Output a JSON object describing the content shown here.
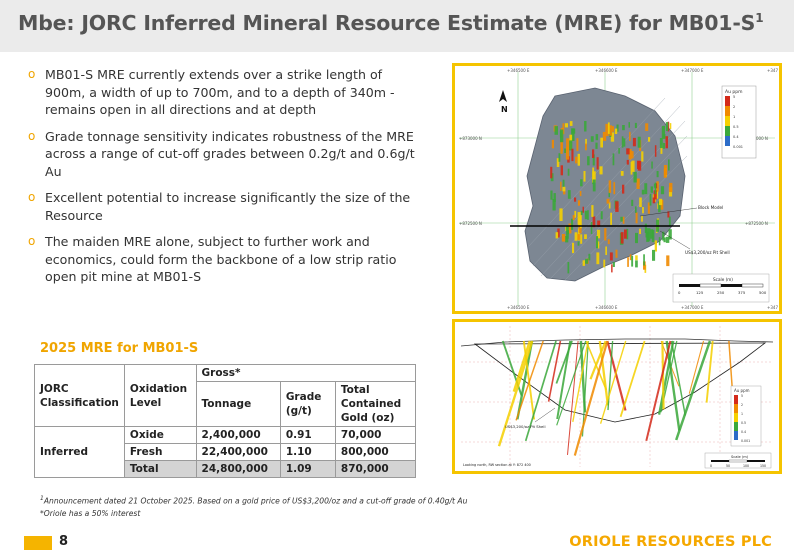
{
  "header": {
    "title": "Mbe: JORC Inferred Mineral Resource Estimate (MRE) for MB01-S",
    "title_sup": "1"
  },
  "bullets": [
    "MB01-S MRE currently extends over a strike length of 900m, a width of up to 700m, and to a depth of 340m - remains open in all directions and at depth",
    "Grade tonnage sensitivity indicates robustness of the MRE across a range of cut-off grades between 0.2g/t and 0.6g/t Au",
    "Excellent potential to increase significantly the size of the Resource",
    "The maiden MRE alone, subject to further work and economics, could form the backbone of a low strip ratio open pit mine at MB01-S"
  ],
  "mre": {
    "heading": "2025 MRE for MB01-S",
    "col_classification": "JORC Classification",
    "col_oxidation": "Oxidation Level",
    "col_gross": "Gross*",
    "col_tonnage": "Tonnage",
    "col_grade": "Grade (g/t)",
    "col_gold": "Total Contained Gold (oz)",
    "classification": "Inferred",
    "rows": [
      {
        "oxidation": "Oxide",
        "tonnage": "2,400,000",
        "grade": "0.91",
        "gold": "70,000"
      },
      {
        "oxidation": "Fresh",
        "tonnage": "22,400,000",
        "grade": "1.10",
        "gold": "800,000"
      },
      {
        "oxidation": "Total",
        "tonnage": "24,800,000",
        "grade": "1.09",
        "gold": "870,000"
      }
    ]
  },
  "footnotes": {
    "sup": "1",
    "line1": "Announcement dated 21 October 2025. Based on a gold price of US$3,200/oz and a cut-off grade of 0.40g/t Au",
    "line2": "*Oriole has a 50% interest"
  },
  "footer": {
    "page_number": "8",
    "company": "ORIOLE RESOURCES PLC"
  },
  "figure_plan": {
    "north_label": "N",
    "legend_title": "Au ppm",
    "legend_values": [
      "5",
      "2",
      "1",
      "0.5",
      "0.4",
      "0.001"
    ],
    "label_block_model": "Block Model",
    "label_pit_shell": "US$3,200/oz Pit Shell",
    "scale_title": "Scale (m)",
    "scale_ticks": [
      "0",
      "125",
      "250",
      "375",
      "500"
    ],
    "easting_labels": [
      "+346500 E",
      "+346600 E",
      "+347000 E",
      "+347"
    ],
    "northing_labels_left": [
      "+873000 N",
      "+872500 N",
      "+872000 N"
    ],
    "northing_labels_right": [
      "+873000 N",
      "+872500 N",
      "+872000 N"
    ],
    "colors": {
      "green": "#3aa83a",
      "yellow": "#f5d000",
      "orange": "#f08a00",
      "red": "#d42a1a",
      "blue": "#2c6cc8",
      "gray": "#7d8793"
    }
  },
  "figure_section": {
    "legend_title": "Au ppm",
    "legend_values": [
      "5",
      "2",
      "1",
      "0.5",
      "0.4",
      "0.001"
    ],
    "label_pit_shell": "US$3,200/oz Pit Shell",
    "scale_title": "Scale (m)",
    "scale_ticks": [
      "0",
      "50",
      "100",
      "150"
    ],
    "looking_label": "Looking north, RW section at Y: 872 400"
  }
}
